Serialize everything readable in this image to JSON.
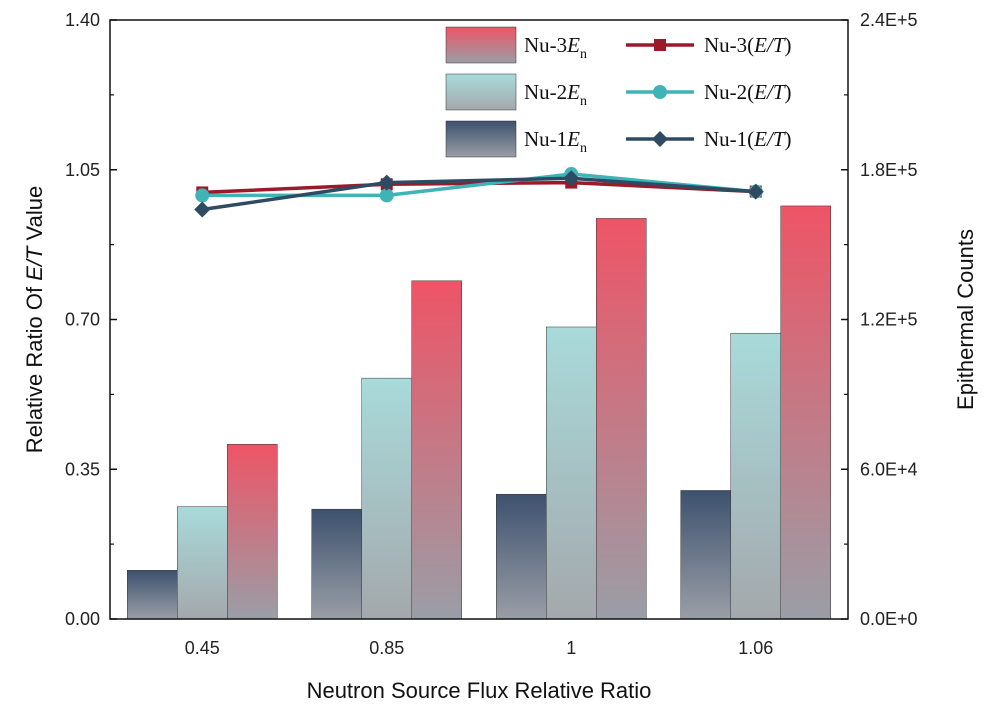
{
  "chart_data": {
    "type": "bar+line",
    "x_categories": [
      "0.45",
      "0.85",
      "1",
      "1.06"
    ],
    "xlabel": "Neutron Source Flux Relative Ratio",
    "ylabel_left": {
      "pre": "Relative Ratio Of ",
      "italic": "E/T",
      "post": " Value"
    },
    "ylabel_right": "Epithermal Counts",
    "y_left": {
      "min": 0,
      "max": 1.4,
      "ticks": [
        "0.00",
        "0.35",
        "0.70",
        "1.05",
        "1.40"
      ],
      "tick_values": [
        0,
        0.35,
        0.7,
        1.05,
        1.4
      ]
    },
    "y_right": {
      "min": 0,
      "max": 240000,
      "ticks": [
        "0.0E+0",
        "6.0E+4",
        "1.2E+5",
        "1.8E+5",
        "2.4E+5"
      ],
      "tick_values": [
        0,
        60000,
        120000,
        180000,
        240000
      ]
    },
    "bar_series": [
      {
        "name": "Nu-1",
        "sub": "n",
        "axis": "right",
        "values": [
          19500,
          44000,
          50000,
          51500
        ],
        "color_top": "#3d516e",
        "color_bottom": "#9a9ea6"
      },
      {
        "name": "Nu-2",
        "sub": "n",
        "axis": "right",
        "values": [
          45000,
          96500,
          117000,
          114500
        ],
        "color_top": "#a9dada",
        "color_bottom": "#a4a8ac"
      },
      {
        "name": "Nu-3",
        "sub": "n",
        "axis": "right",
        "values": [
          70000,
          135500,
          160500,
          165500
        ],
        "color_top": "#ee5466",
        "color_bottom": "#9a9ea6"
      }
    ],
    "line_series": [
      {
        "name": "Nu-3",
        "axis": "left",
        "values": [
          0.997,
          1.016,
          1.02,
          0.999
        ],
        "color": "#9a1a2a",
        "marker": "square"
      },
      {
        "name": "Nu-2",
        "axis": "left",
        "values": [
          0.99,
          0.99,
          1.04,
          0.999
        ],
        "color": "#3fb3b6",
        "marker": "circle"
      },
      {
        "name": "Nu-1",
        "axis": "left",
        "values": [
          0.957,
          1.02,
          1.03,
          0.999
        ],
        "color": "#2f4a63",
        "marker": "diamond"
      }
    ],
    "legend": {
      "placement": "top-right",
      "bar_labels": [
        {
          "pre": "Nu-3",
          "italic": "E",
          "sub": "n"
        },
        {
          "pre": "Nu-2",
          "italic": "E",
          "sub": "n"
        },
        {
          "pre": "Nu-1",
          "italic": "E",
          "sub": "n"
        }
      ],
      "line_labels": [
        {
          "pre": "Nu-3(",
          "italic": "E/T",
          "post": ")"
        },
        {
          "pre": "Nu-2(",
          "italic": "E/T",
          "post": ")"
        },
        {
          "pre": "Nu-1(",
          "italic": "E/T",
          "post": ")"
        }
      ]
    }
  }
}
